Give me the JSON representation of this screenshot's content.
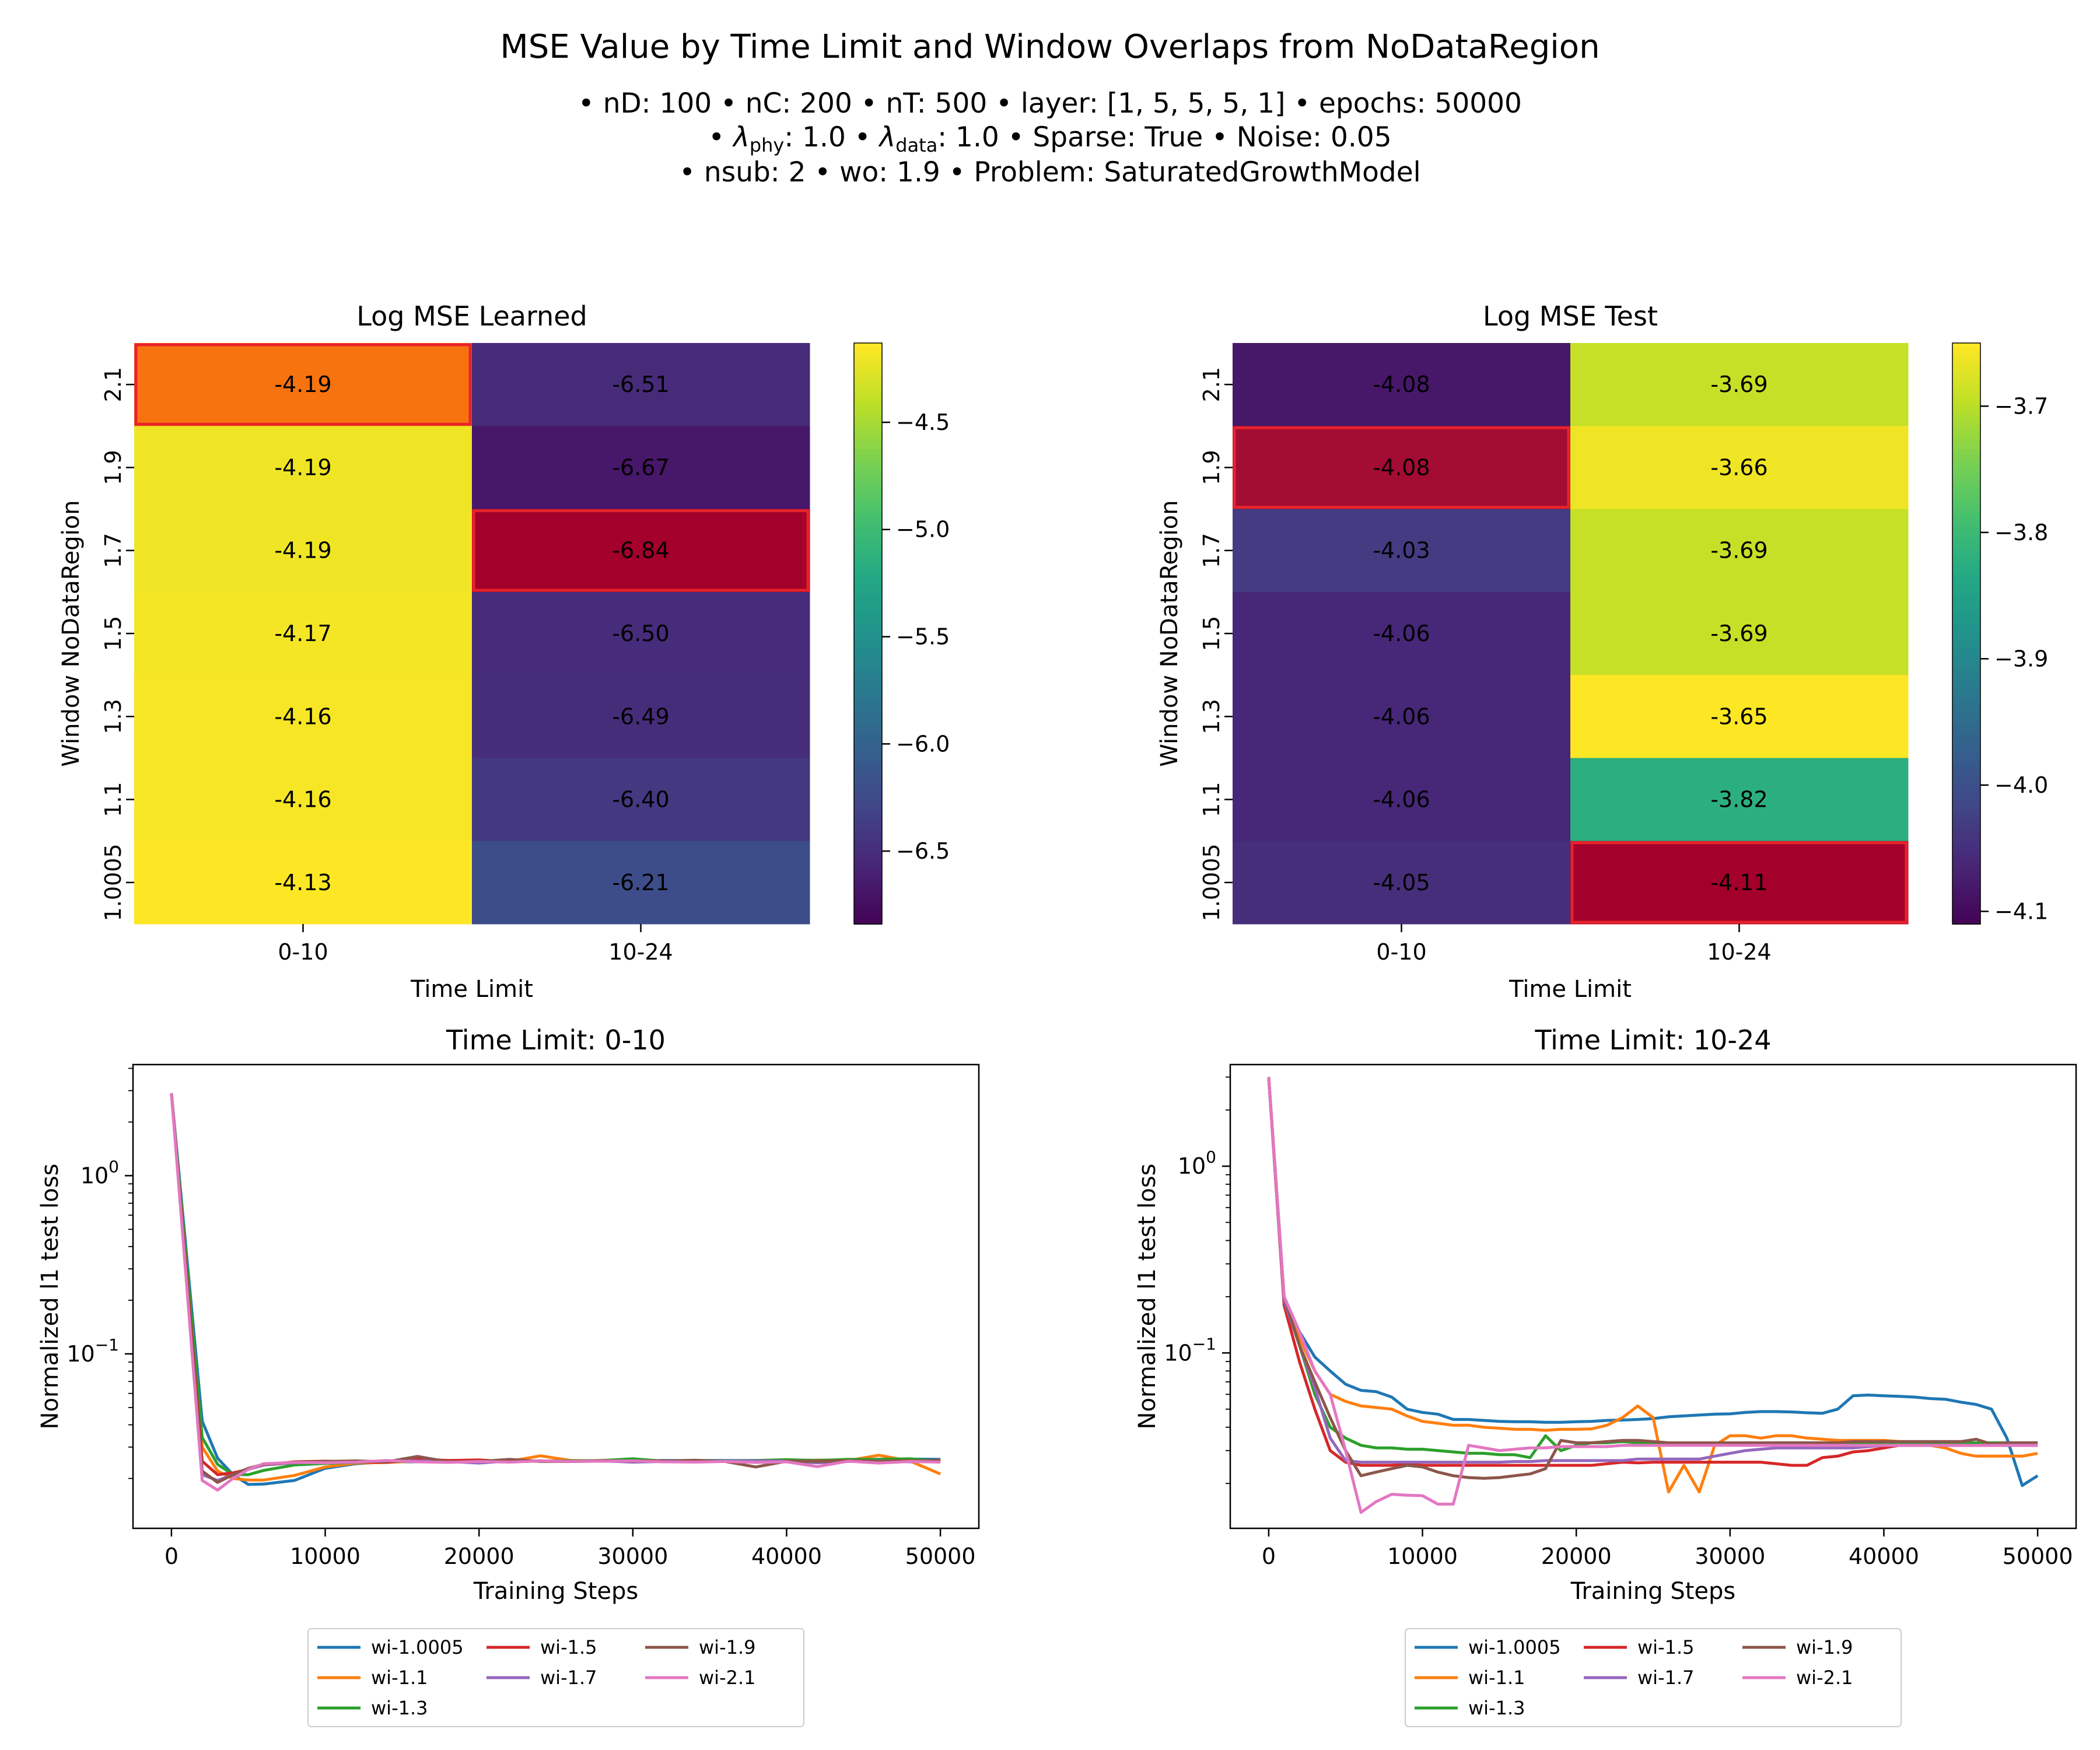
{
  "suptitle": "MSE Value by Time Limit and Window Overlaps from NoDataRegion",
  "subtitle": {
    "line1": "• nD: 100 • nC: 200 • nT: 500 • layer: [1, 5, 5, 5, 1] • epochs: 50000",
    "line2_a": "• ",
    "lambda": "λ",
    "phy": "phy",
    "line2_b": ": 1.0 • ",
    "data": "data",
    "line2_c": ": 1.0 • Sparse: True • Noise: 0.05",
    "line3": "• nsub: 2 • wo: 1.9 • Problem: SaturatedGrowthModel"
  },
  "chart_data": [
    {
      "type": "heatmap",
      "title": "Log MSE Learned",
      "xlabel": "Time Limit",
      "ylabel": "Window NoDataRegion",
      "x": [
        "0-10",
        "10-24"
      ],
      "y": [
        "2.1",
        "1.9",
        "1.7",
        "1.5",
        "1.3",
        "1.1",
        "1.0005"
      ],
      "values": [
        [
          -4.19,
          -6.51
        ],
        [
          -4.19,
          -6.67
        ],
        [
          -4.19,
          -6.84
        ],
        [
          -4.17,
          -6.5
        ],
        [
          -4.16,
          -6.49
        ],
        [
          -4.16,
          -6.4
        ],
        [
          -4.13,
          -6.21
        ]
      ],
      "labels": [
        [
          "-4.19",
          "-6.51"
        ],
        [
          "-4.19",
          "-6.67"
        ],
        [
          "-4.19",
          "-6.84"
        ],
        [
          "-4.17",
          "-6.50"
        ],
        [
          "-4.16",
          "-6.49"
        ],
        [
          "-4.16",
          "-6.40"
        ],
        [
          "-4.13",
          "-6.21"
        ]
      ],
      "colormap": "viridis",
      "vmin": -6.84,
      "vmax": -4.13,
      "colorbar_ticks": [
        -4.5,
        -5.0,
        -5.5,
        -6.0,
        -6.5
      ],
      "colorbar_ticklabels": [
        "−4.5",
        "−5.0",
        "−5.5",
        "−6.0",
        "−6.5"
      ],
      "highlight": [
        {
          "row": 0,
          "col": 0,
          "color": "#f77310"
        },
        {
          "row": 2,
          "col": 1,
          "color": "#a3002b"
        }
      ]
    },
    {
      "type": "heatmap",
      "title": "Log MSE Test",
      "xlabel": "Time Limit",
      "ylabel": "Window NoDataRegion",
      "x": [
        "0-10",
        "10-24"
      ],
      "y": [
        "2.1",
        "1.9",
        "1.7",
        "1.5",
        "1.3",
        "1.1",
        "1.0005"
      ],
      "values": [
        [
          -4.08,
          -3.69
        ],
        [
          -4.08,
          -3.66
        ],
        [
          -4.03,
          -3.69
        ],
        [
          -4.06,
          -3.69
        ],
        [
          -4.06,
          -3.65
        ],
        [
          -4.06,
          -3.82
        ],
        [
          -4.05,
          -4.11
        ]
      ],
      "labels": [
        [
          "-4.08",
          "-3.69"
        ],
        [
          "-4.08",
          "-3.66"
        ],
        [
          "-4.03",
          "-3.69"
        ],
        [
          "-4.06",
          "-3.69"
        ],
        [
          "-4.06",
          "-3.65"
        ],
        [
          "-4.06",
          "-3.82"
        ],
        [
          "-4.05",
          "-4.11"
        ]
      ],
      "colormap": "viridis",
      "vmin": -4.11,
      "vmax": -3.65,
      "colorbar_ticks": [
        -3.7,
        -3.8,
        -3.9,
        -4.0,
        -4.1
      ],
      "colorbar_ticklabels": [
        "−3.7",
        "−3.8",
        "−3.9",
        "−4.0",
        "−4.1"
      ],
      "highlight": [
        {
          "row": 1,
          "col": 0,
          "color": "#a30c33"
        },
        {
          "row": 6,
          "col": 1,
          "color": "#a3002b"
        }
      ]
    },
    {
      "type": "line",
      "title": "Time Limit: 0-10",
      "xlabel": "Training Steps",
      "ylabel": "Normalized l1 test loss",
      "yscale": "log",
      "xlim": [
        -2500,
        52500
      ],
      "ylim": [
        0.0105,
        4.2
      ],
      "xticks": [
        0,
        10000,
        20000,
        30000,
        40000,
        50000
      ],
      "xticklabels": [
        "0",
        "10000",
        "20000",
        "30000",
        "40000",
        "50000"
      ],
      "yticks": [
        1,
        0.1
      ],
      "yticklabels": [
        {
          "base": "10",
          "exp": "0"
        },
        {
          "base": "10",
          "exp": "−1"
        }
      ],
      "legend": "lower center, outside, 3 columns",
      "x": [
        0,
        2000,
        3000,
        4000,
        5000,
        6000,
        8000,
        10000,
        12000,
        14000,
        16000,
        18000,
        20000,
        22000,
        24000,
        26000,
        28000,
        30000,
        32000,
        34000,
        36000,
        38000,
        40000,
        42000,
        44000,
        46000,
        48000,
        50000
      ],
      "series": [
        {
          "name": "wi-1.0005",
          "color": "#1f77b4",
          "values": [
            2.9,
            0.042,
            0.026,
            0.021,
            0.0185,
            0.0186,
            0.0195,
            0.0228,
            0.0242,
            0.0248,
            0.0248,
            0.0251,
            0.0249,
            0.0251,
            0.0251,
            0.025,
            0.025,
            0.0251,
            0.0252,
            0.0252,
            0.0252,
            0.0252,
            0.0253,
            0.0253,
            0.0254,
            0.0256,
            0.0257,
            0.0256
          ]
        },
        {
          "name": "wi-1.1",
          "color": "#ff7f0e",
          "values": [
            2.9,
            0.03,
            0.022,
            0.02,
            0.0196,
            0.0196,
            0.0208,
            0.0232,
            0.0244,
            0.0246,
            0.025,
            0.0252,
            0.0253,
            0.025,
            0.0268,
            0.0252,
            0.0251,
            0.0254,
            0.025,
            0.0252,
            0.0249,
            0.025,
            0.0251,
            0.0253,
            0.0252,
            0.027,
            0.0251,
            0.0212
          ]
        },
        {
          "name": "wi-1.3",
          "color": "#2ca02c",
          "values": [
            2.9,
            0.034,
            0.024,
            0.021,
            0.021,
            0.0222,
            0.0238,
            0.0243,
            0.0246,
            0.0248,
            0.0251,
            0.025,
            0.0249,
            0.0249,
            0.025,
            0.0251,
            0.0252,
            0.0258,
            0.025,
            0.0251,
            0.0251,
            0.0252,
            0.0255,
            0.0252,
            0.0256,
            0.0256,
            0.0258,
            0.025
          ]
        },
        {
          "name": "wi-1.5",
          "color": "#d62728",
          "values": [
            2.9,
            0.025,
            0.021,
            0.0215,
            0.0225,
            0.0238,
            0.0248,
            0.025,
            0.0248,
            0.0246,
            0.0258,
            0.0252,
            0.0254,
            0.0248,
            0.0251,
            0.0249,
            0.025,
            0.025,
            0.0251,
            0.0249,
            0.0249,
            0.0251,
            0.025,
            0.025,
            0.0251,
            0.025,
            0.0251,
            0.025
          ]
        },
        {
          "name": "wi-1.7",
          "color": "#9467bd",
          "values": [
            2.9,
            0.021,
            0.0195,
            0.021,
            0.0225,
            0.0238,
            0.0245,
            0.0248,
            0.0247,
            0.0251,
            0.0251,
            0.0249,
            0.0244,
            0.0251,
            0.025,
            0.0249,
            0.0251,
            0.0247,
            0.0249,
            0.0251,
            0.025,
            0.0251,
            0.025,
            0.0245,
            0.0249,
            0.025,
            0.0248,
            0.025
          ]
        },
        {
          "name": "wi-1.9",
          "color": "#8c564b",
          "values": [
            2.9,
            0.022,
            0.019,
            0.021,
            0.0228,
            0.024,
            0.0246,
            0.0249,
            0.0251,
            0.0248,
            0.0266,
            0.0248,
            0.0249,
            0.0256,
            0.0249,
            0.0249,
            0.0252,
            0.025,
            0.025,
            0.0253,
            0.0249,
            0.0232,
            0.025,
            0.0249,
            0.025,
            0.0249,
            0.025,
            0.0253
          ]
        },
        {
          "name": "wi-2.1",
          "color": "#e377c2",
          "values": [
            2.9,
            0.0195,
            0.0172,
            0.02,
            0.0225,
            0.0242,
            0.0246,
            0.0245,
            0.0247,
            0.0252,
            0.0248,
            0.0246,
            0.0249,
            0.0247,
            0.0251,
            0.0249,
            0.025,
            0.0251,
            0.0248,
            0.0247,
            0.0249,
            0.0246,
            0.0248,
            0.0233,
            0.025,
            0.0244,
            0.0249,
            0.0247
          ]
        }
      ]
    },
    {
      "type": "line",
      "title": "Time Limit: 10-24",
      "xlabel": "Training Steps",
      "ylabel": "Normalized l1 test loss",
      "yscale": "log",
      "xlim": [
        -2500,
        52500
      ],
      "ylim": [
        0.0115,
        3.5
      ],
      "xticks": [
        0,
        10000,
        20000,
        30000,
        40000,
        50000
      ],
      "xticklabels": [
        "0",
        "10000",
        "20000",
        "30000",
        "40000",
        "50000"
      ],
      "yticks": [
        1,
        0.1
      ],
      "yticklabels": [
        {
          "base": "10",
          "exp": "0"
        },
        {
          "base": "10",
          "exp": "−1"
        }
      ],
      "legend": "lower center, outside, 3 columns",
      "x": [
        0,
        1000,
        2000,
        3000,
        4000,
        5000,
        6000,
        7000,
        8000,
        9000,
        10000,
        11000,
        12000,
        13000,
        14000,
        15000,
        16000,
        17000,
        18000,
        19000,
        20000,
        21000,
        22000,
        23000,
        24000,
        25000,
        26000,
        27000,
        28000,
        29000,
        30000,
        31000,
        32000,
        33000,
        34000,
        35000,
        36000,
        37000,
        38000,
        39000,
        40000,
        41000,
        42000,
        43000,
        44000,
        45000,
        46000,
        47000,
        48000,
        49000,
        50000
      ],
      "series": [
        {
          "name": "wi-1.0005",
          "color": "#1f77b4",
          "values": [
            3.0,
            0.2,
            0.13,
            0.095,
            0.08,
            0.068,
            0.063,
            0.062,
            0.058,
            0.05,
            0.048,
            0.047,
            0.044,
            0.044,
            0.0435,
            0.043,
            0.0428,
            0.0428,
            0.0425,
            0.0425,
            0.0428,
            0.043,
            0.0435,
            0.0437,
            0.044,
            0.0445,
            0.0455,
            0.046,
            0.0465,
            0.047,
            0.0472,
            0.048,
            0.0485,
            0.0485,
            0.0483,
            0.0478,
            0.0475,
            0.05,
            0.059,
            0.0595,
            0.059,
            0.0585,
            0.058,
            0.057,
            0.0565,
            0.0545,
            0.053,
            0.05,
            0.035,
            0.0195,
            0.022
          ]
        },
        {
          "name": "wi-1.1",
          "color": "#ff7f0e",
          "values": [
            3.0,
            0.2,
            0.12,
            0.08,
            0.06,
            0.055,
            0.052,
            0.051,
            0.05,
            0.046,
            0.043,
            0.042,
            0.041,
            0.041,
            0.04,
            0.0395,
            0.039,
            0.039,
            0.0385,
            0.039,
            0.039,
            0.0392,
            0.041,
            0.045,
            0.052,
            0.045,
            0.018,
            0.025,
            0.018,
            0.032,
            0.036,
            0.036,
            0.035,
            0.036,
            0.036,
            0.035,
            0.0345,
            0.034,
            0.034,
            0.034,
            0.034,
            0.0335,
            0.033,
            0.032,
            0.031,
            0.029,
            0.028,
            0.028,
            0.028,
            0.028,
            0.029
          ]
        },
        {
          "name": "wi-1.3",
          "color": "#2ca02c",
          "values": [
            3.0,
            0.19,
            0.11,
            0.06,
            0.04,
            0.035,
            0.032,
            0.031,
            0.031,
            0.0305,
            0.0305,
            0.03,
            0.0295,
            0.029,
            0.029,
            0.0285,
            0.0285,
            0.0275,
            0.036,
            0.03,
            0.032,
            0.033,
            0.033,
            0.0335,
            0.033,
            0.033,
            0.0325,
            0.0325,
            0.0325,
            0.0325,
            0.0325,
            0.033,
            0.032,
            0.033,
            0.033,
            0.033,
            0.033,
            0.033,
            0.033,
            0.033,
            0.033,
            0.033,
            0.033,
            0.033,
            0.033,
            0.033,
            0.033,
            0.033,
            0.033,
            0.033,
            0.033
          ]
        },
        {
          "name": "wi-1.5",
          "color": "#d62728",
          "values": [
            3.0,
            0.18,
            0.09,
            0.05,
            0.03,
            0.026,
            0.025,
            0.025,
            0.025,
            0.0255,
            0.025,
            0.025,
            0.025,
            0.025,
            0.025,
            0.025,
            0.025,
            0.025,
            0.025,
            0.025,
            0.025,
            0.025,
            0.0255,
            0.026,
            0.0258,
            0.026,
            0.026,
            0.026,
            0.026,
            0.026,
            0.026,
            0.026,
            0.026,
            0.0255,
            0.025,
            0.025,
            0.0275,
            0.028,
            0.0295,
            0.03,
            0.031,
            0.032,
            0.032,
            0.032,
            0.032,
            0.032,
            0.032,
            0.032,
            0.032,
            0.032,
            0.032
          ]
        },
        {
          "name": "wi-1.7",
          "color": "#9467bd",
          "values": [
            3.0,
            0.19,
            0.11,
            0.065,
            0.035,
            0.0265,
            0.026,
            0.026,
            0.026,
            0.026,
            0.026,
            0.026,
            0.026,
            0.026,
            0.026,
            0.026,
            0.0262,
            0.0262,
            0.0265,
            0.0265,
            0.0265,
            0.0265,
            0.0265,
            0.0265,
            0.027,
            0.027,
            0.027,
            0.027,
            0.027,
            0.028,
            0.029,
            0.03,
            0.0305,
            0.031,
            0.031,
            0.031,
            0.031,
            0.031,
            0.031,
            0.0315,
            0.032,
            0.032,
            0.032,
            0.032,
            0.032,
            0.032,
            0.032,
            0.032,
            0.032,
            0.032,
            0.032
          ]
        },
        {
          "name": "wi-1.9",
          "color": "#8c564b",
          "values": [
            3.0,
            0.2,
            0.11,
            0.07,
            0.045,
            0.03,
            0.022,
            0.023,
            0.024,
            0.025,
            0.0245,
            0.023,
            0.022,
            0.0215,
            0.0213,
            0.0215,
            0.022,
            0.0225,
            0.024,
            0.034,
            0.033,
            0.033,
            0.0335,
            0.034,
            0.034,
            0.0335,
            0.033,
            0.033,
            0.033,
            0.033,
            0.033,
            0.033,
            0.033,
            0.033,
            0.033,
            0.033,
            0.033,
            0.033,
            0.0335,
            0.0335,
            0.0335,
            0.0335,
            0.0335,
            0.0335,
            0.0335,
            0.0335,
            0.0345,
            0.0325,
            0.033,
            0.033,
            0.033
          ]
        },
        {
          "name": "wi-2.1",
          "color": "#e377c2",
          "values": [
            3.0,
            0.2,
            0.13,
            0.08,
            0.06,
            0.03,
            0.014,
            0.016,
            0.0175,
            0.0173,
            0.0172,
            0.0155,
            0.0155,
            0.032,
            0.031,
            0.03,
            0.0305,
            0.031,
            0.031,
            0.0315,
            0.0315,
            0.0315,
            0.0315,
            0.032,
            0.032,
            0.032,
            0.032,
            0.032,
            0.032,
            0.032,
            0.032,
            0.032,
            0.032,
            0.032,
            0.032,
            0.032,
            0.032,
            0.032,
            0.032,
            0.032,
            0.032,
            0.032,
            0.032,
            0.032,
            0.032,
            0.032,
            0.032,
            0.032,
            0.032,
            0.032,
            0.032
          ]
        }
      ]
    }
  ]
}
